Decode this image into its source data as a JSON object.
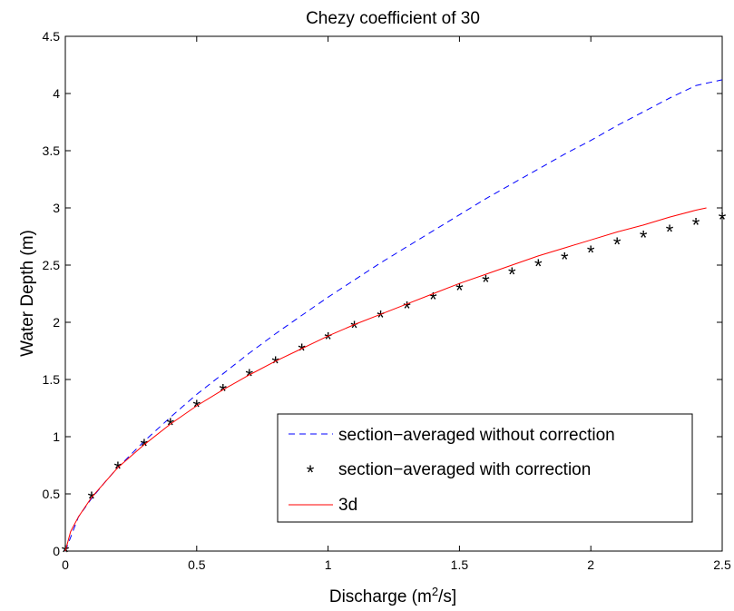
{
  "chart_data": {
    "type": "line",
    "title": "Chezy coefficient of 30",
    "xlabel": "Discharge (m",
    "xlabel_sup": "2",
    "xlabel_tail": "/s]",
    "ylabel": "Water Depth (m)",
    "xlim": [
      0,
      2.5
    ],
    "ylim": [
      0,
      4.5
    ],
    "grid": false,
    "legend_position": "lower-right",
    "x_ticks": [
      "0",
      "0.5",
      "1",
      "1.5",
      "2",
      "2.5"
    ],
    "y_ticks": [
      "0",
      "0.5",
      "1",
      "1.5",
      "2",
      "2.5",
      "3",
      "3.5",
      "4",
      "4.5"
    ],
    "series": [
      {
        "name": "section−averaged without correction",
        "style": "dashed",
        "color": "#0000ff",
        "x": [
          0,
          0.05,
          0.1,
          0.15,
          0.2,
          0.3,
          0.4,
          0.5,
          0.6,
          0.7,
          0.8,
          0.9,
          1.0,
          1.1,
          1.2,
          1.3,
          1.4,
          1.5,
          1.6,
          1.7,
          1.8,
          1.9,
          2.0,
          2.1,
          2.2,
          2.3,
          2.4,
          2.5
        ],
        "y": [
          0,
          0.3,
          0.46,
          0.6,
          0.73,
          0.96,
          1.17,
          1.37,
          1.55,
          1.73,
          1.9,
          2.06,
          2.22,
          2.37,
          2.52,
          2.66,
          2.8,
          2.94,
          3.08,
          3.21,
          3.34,
          3.47,
          3.59,
          3.72,
          3.84,
          3.96,
          4.07,
          4.12
        ]
      },
      {
        "name": "section−averaged with correction",
        "style": "marker-star",
        "color": "#000000",
        "x": [
          0,
          0.1,
          0.2,
          0.3,
          0.4,
          0.5,
          0.6,
          0.7,
          0.8,
          0.9,
          1.0,
          1.1,
          1.2,
          1.3,
          1.4,
          1.5,
          1.6,
          1.7,
          1.8,
          1.9,
          2.0,
          2.1,
          2.2,
          2.3,
          2.4,
          2.5
        ],
        "y": [
          0,
          0.47,
          0.73,
          0.93,
          1.11,
          1.27,
          1.41,
          1.54,
          1.65,
          1.76,
          1.86,
          1.96,
          2.05,
          2.13,
          2.21,
          2.29,
          2.36,
          2.43,
          2.5,
          2.56,
          2.62,
          2.69,
          2.75,
          2.8,
          2.86,
          2.91
        ]
      },
      {
        "name": "3d",
        "style": "solid",
        "color": "#ff0000",
        "x": [
          0,
          0.02,
          0.05,
          0.1,
          0.2,
          0.3,
          0.4,
          0.5,
          0.6,
          0.7,
          0.8,
          0.9,
          1.0,
          1.1,
          1.2,
          1.3,
          1.4,
          1.5,
          1.6,
          1.7,
          1.8,
          1.9,
          2.0,
          2.1,
          2.2,
          2.3,
          2.4,
          2.44
        ],
        "y": [
          0,
          0.17,
          0.3,
          0.47,
          0.73,
          0.93,
          1.11,
          1.27,
          1.41,
          1.54,
          1.66,
          1.77,
          1.88,
          1.98,
          2.07,
          2.16,
          2.25,
          2.34,
          2.42,
          2.5,
          2.58,
          2.65,
          2.72,
          2.79,
          2.85,
          2.92,
          2.98,
          3.0
        ]
      }
    ]
  }
}
